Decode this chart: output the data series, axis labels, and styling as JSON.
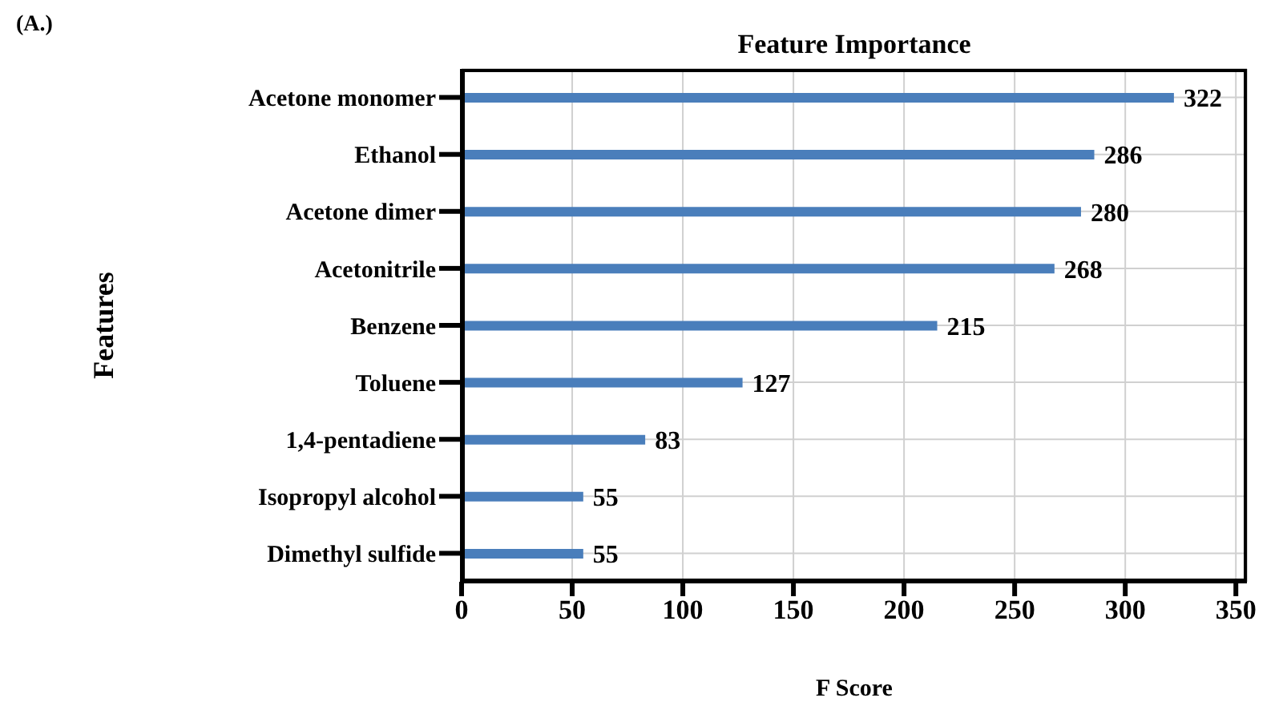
{
  "chart_data": {
    "type": "bar",
    "orientation": "horizontal",
    "title": "Feature Importance",
    "xlabel": "F Score",
    "ylabel": "Features",
    "annotations": [
      "(A.)"
    ],
    "categories": [
      "Acetone monomer",
      "Ethanol",
      "Acetone dimer",
      "Acetonitrile",
      "Benzene",
      "Toluene",
      "1,4-pentadiene",
      "Isopropyl alcohol",
      "Dimethyl sulfide"
    ],
    "values": [
      322,
      286,
      280,
      268,
      215,
      127,
      83,
      55,
      55
    ],
    "color": "#4a7ebb",
    "data_labels": true,
    "xlim": [
      0,
      355
    ],
    "xticks": [
      0,
      50,
      100,
      150,
      200,
      250,
      300,
      350
    ],
    "grid": true
  }
}
